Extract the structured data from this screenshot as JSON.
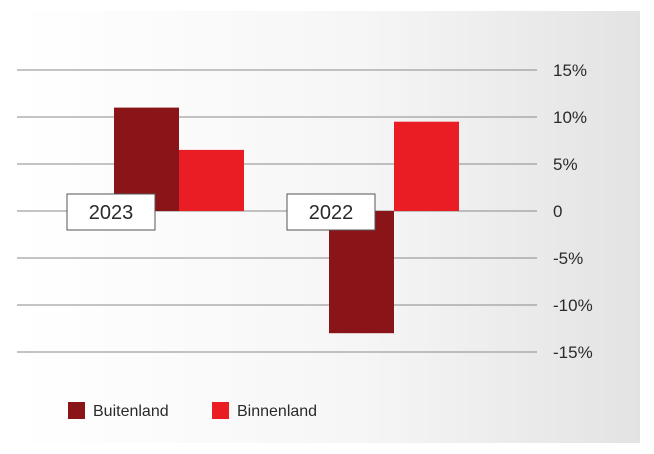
{
  "chart_data": {
    "type": "bar",
    "categories": [
      "2023",
      "2022"
    ],
    "series": [
      {
        "name": "Buitenland",
        "values": [
          11,
          -13
        ],
        "color": "#8a1518"
      },
      {
        "name": "Binnenland",
        "values": [
          6.5,
          9.5
        ],
        "color": "#ea1c24"
      }
    ],
    "yticks": [
      15,
      10,
      5,
      0,
      -5,
      -10,
      -15
    ],
    "ytick_labels": [
      "15%",
      "10%",
      "5%",
      "0",
      "-5%",
      "-10%",
      "-15%"
    ],
    "ylim": [
      -15,
      15
    ],
    "y_axis_position": "right",
    "grid": true,
    "legend_position": "bottom-left",
    "title": "",
    "xlabel": "",
    "ylabel": ""
  }
}
